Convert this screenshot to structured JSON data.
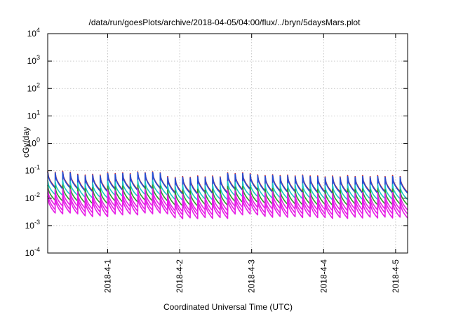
{
  "chart_data": {
    "type": "line",
    "title": "/data/run/goesPlots/archive/2018-04-05/04:00/flux/../bryn/5daysMars.plot",
    "xlabel": "Coordinated Universal Time (UTC)",
    "ylabel": "cGy/day",
    "yscale": "log",
    "ylim": [
      0.0001,
      10000
    ],
    "xlim": [
      "2018-03-31T04:00",
      "2018-04-05T04:00"
    ],
    "grid": true,
    "y_ticks": [
      {
        "exp": "-4",
        "value": 0.0001
      },
      {
        "exp": "-3",
        "value": 0.001
      },
      {
        "exp": "-2",
        "value": 0.01
      },
      {
        "exp": "-1",
        "value": 0.1
      },
      {
        "exp": "0",
        "value": 1
      },
      {
        "exp": "1",
        "value": 10
      },
      {
        "exp": "2",
        "value": 100
      },
      {
        "exp": "3",
        "value": 1000
      },
      {
        "exp": "4",
        "value": 10000
      }
    ],
    "y_tick_base": "10",
    "x_ticks": [
      {
        "label": "2018-4-1",
        "date": "2018-04-01T00:00"
      },
      {
        "label": "2018-4-2",
        "date": "2018-04-02T00:00"
      },
      {
        "label": "2018-4-3",
        "date": "2018-04-03T00:00"
      },
      {
        "label": "2018-4-4",
        "date": "2018-04-04T00:00"
      },
      {
        "label": "2018-4-5",
        "date": "2018-04-05T00:00"
      }
    ],
    "period_hours": 2.5,
    "series": [
      {
        "color": "#d62020",
        "values": [
          0.096,
          0.075,
          0.085,
          0.092,
          0.062,
          0.065,
          0.085,
          0.072,
          0.07,
          0.065,
          0.067,
          0.067
        ]
      },
      {
        "color": "#1f4fd8",
        "values": [
          0.09,
          0.07,
          0.08,
          0.088,
          0.058,
          0.061,
          0.08,
          0.068,
          0.066,
          0.061,
          0.063,
          0.063
        ]
      },
      {
        "color": "#19c6c6",
        "values": [
          0.045,
          0.036,
          0.042,
          0.045,
          0.03,
          0.031,
          0.041,
          0.035,
          0.034,
          0.031,
          0.032,
          0.032
        ]
      },
      {
        "color": "#2a9a2a",
        "values": [
          0.03,
          0.024,
          0.028,
          0.03,
          0.02,
          0.021,
          0.027,
          0.023,
          0.022,
          0.021,
          0.022,
          0.022
        ]
      },
      {
        "color": "#e61ee6",
        "values": [
          0.022,
          0.017,
          0.02,
          0.022,
          0.014,
          0.015,
          0.02,
          0.017,
          0.016,
          0.015,
          0.016,
          0.016
        ]
      },
      {
        "color": "#e61ee6",
        "values": [
          0.016,
          0.013,
          0.015,
          0.016,
          0.011,
          0.011,
          0.015,
          0.012,
          0.012,
          0.011,
          0.012,
          0.012
        ]
      },
      {
        "color": "#e61ee6",
        "values": [
          0.012,
          0.0095,
          0.011,
          0.012,
          0.008,
          0.0082,
          0.011,
          0.009,
          0.0088,
          0.0082,
          0.0085,
          0.0085
        ]
      }
    ],
    "decay_factors": [
      0.26,
      0.26,
      0.3,
      0.28,
      0.25,
      0.24,
      0.24
    ],
    "legend": "none"
  }
}
